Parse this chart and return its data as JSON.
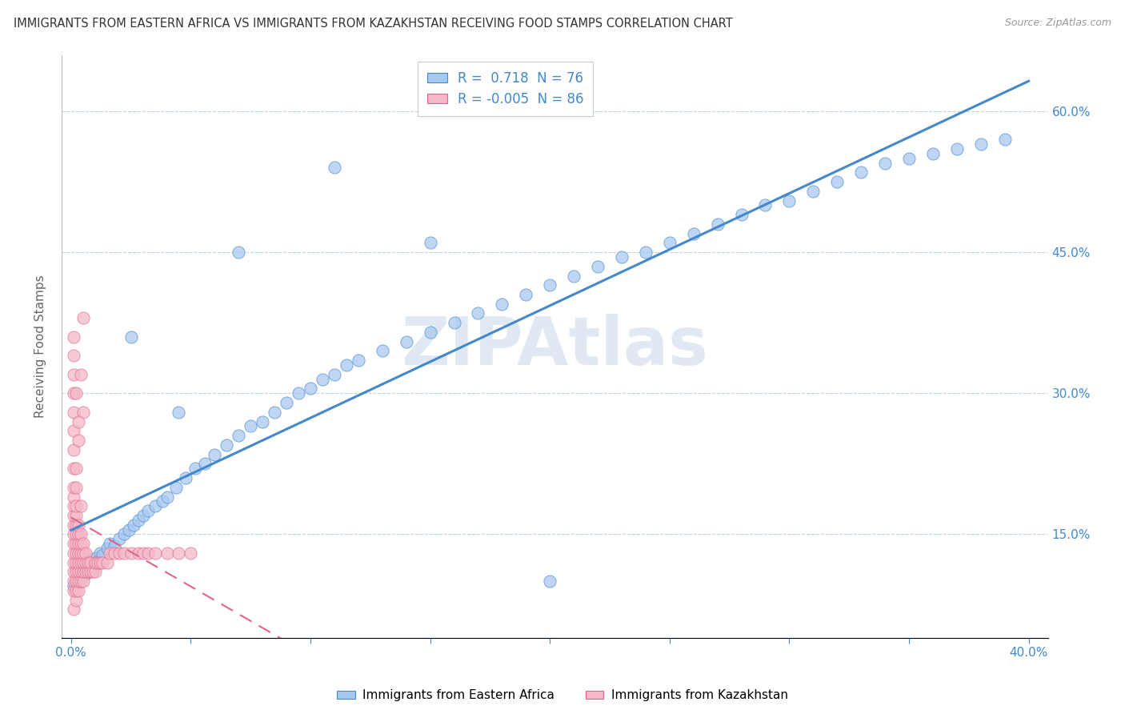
{
  "title": "IMMIGRANTS FROM EASTERN AFRICA VS IMMIGRANTS FROM KAZAKHSTAN RECEIVING FOOD STAMPS CORRELATION CHART",
  "source": "Source: ZipAtlas.com",
  "ylabel": "Receiving Food Stamps",
  "R_blue": 0.718,
  "N_blue": 76,
  "R_pink": -0.005,
  "N_pink": 86,
  "blue_scatter_color": "#a8c8f0",
  "blue_line_color": "#4488cc",
  "pink_scatter_color": "#f5b8c8",
  "pink_line_color": "#dd6688",
  "watermark": "ZIPAtlas",
  "legend_label_blue": "Immigrants from Eastern Africa",
  "legend_label_pink": "Immigrants from Kazakhstan",
  "blue_scatter_x": [
    0.001,
    0.002,
    0.003,
    0.004,
    0.005,
    0.006,
    0.007,
    0.008,
    0.009,
    0.01,
    0.011,
    0.012,
    0.013,
    0.015,
    0.016,
    0.018,
    0.02,
    0.022,
    0.024,
    0.026,
    0.028,
    0.03,
    0.032,
    0.035,
    0.038,
    0.04,
    0.044,
    0.048,
    0.052,
    0.056,
    0.06,
    0.065,
    0.07,
    0.075,
    0.08,
    0.085,
    0.09,
    0.095,
    0.1,
    0.105,
    0.11,
    0.115,
    0.12,
    0.13,
    0.14,
    0.15,
    0.16,
    0.17,
    0.18,
    0.19,
    0.2,
    0.21,
    0.22,
    0.23,
    0.24,
    0.25,
    0.26,
    0.27,
    0.28,
    0.29,
    0.3,
    0.31,
    0.32,
    0.33,
    0.34,
    0.35,
    0.36,
    0.37,
    0.38,
    0.39,
    0.025,
    0.045,
    0.07,
    0.11,
    0.15,
    0.2
  ],
  "blue_scatter_y": [
    0.095,
    0.1,
    0.105,
    0.115,
    0.11,
    0.108,
    0.118,
    0.122,
    0.115,
    0.125,
    0.12,
    0.13,
    0.128,
    0.135,
    0.14,
    0.138,
    0.145,
    0.15,
    0.155,
    0.16,
    0.165,
    0.17,
    0.175,
    0.18,
    0.185,
    0.19,
    0.2,
    0.21,
    0.22,
    0.225,
    0.235,
    0.245,
    0.255,
    0.265,
    0.27,
    0.28,
    0.29,
    0.3,
    0.305,
    0.315,
    0.32,
    0.33,
    0.335,
    0.345,
    0.355,
    0.365,
    0.375,
    0.385,
    0.395,
    0.405,
    0.415,
    0.425,
    0.435,
    0.445,
    0.45,
    0.46,
    0.47,
    0.48,
    0.49,
    0.5,
    0.505,
    0.515,
    0.525,
    0.535,
    0.545,
    0.55,
    0.555,
    0.56,
    0.565,
    0.57,
    0.36,
    0.28,
    0.45,
    0.54,
    0.46,
    0.1
  ],
  "pink_scatter_x": [
    0.001,
    0.001,
    0.001,
    0.001,
    0.001,
    0.001,
    0.001,
    0.001,
    0.001,
    0.001,
    0.001,
    0.001,
    0.001,
    0.001,
    0.001,
    0.001,
    0.001,
    0.001,
    0.001,
    0.002,
    0.002,
    0.002,
    0.002,
    0.002,
    0.002,
    0.002,
    0.002,
    0.002,
    0.002,
    0.002,
    0.002,
    0.003,
    0.003,
    0.003,
    0.003,
    0.003,
    0.003,
    0.003,
    0.003,
    0.004,
    0.004,
    0.004,
    0.004,
    0.004,
    0.004,
    0.005,
    0.005,
    0.005,
    0.005,
    0.005,
    0.006,
    0.006,
    0.006,
    0.007,
    0.007,
    0.008,
    0.008,
    0.009,
    0.01,
    0.01,
    0.011,
    0.012,
    0.013,
    0.015,
    0.016,
    0.018,
    0.02,
    0.022,
    0.025,
    0.028,
    0.03,
    0.032,
    0.035,
    0.04,
    0.045,
    0.05,
    0.001,
    0.002,
    0.003,
    0.004,
    0.005,
    0.001,
    0.002,
    0.003,
    0.004,
    0.005
  ],
  "pink_scatter_y": [
    0.07,
    0.09,
    0.1,
    0.11,
    0.12,
    0.13,
    0.14,
    0.15,
    0.16,
    0.17,
    0.18,
    0.19,
    0.2,
    0.22,
    0.24,
    0.26,
    0.28,
    0.3,
    0.32,
    0.08,
    0.09,
    0.1,
    0.11,
    0.12,
    0.13,
    0.14,
    0.15,
    0.16,
    0.17,
    0.18,
    0.2,
    0.09,
    0.1,
    0.11,
    0.12,
    0.13,
    0.14,
    0.15,
    0.16,
    0.1,
    0.11,
    0.12,
    0.13,
    0.14,
    0.15,
    0.1,
    0.11,
    0.12,
    0.13,
    0.14,
    0.11,
    0.12,
    0.13,
    0.11,
    0.12,
    0.11,
    0.12,
    0.11,
    0.11,
    0.12,
    0.12,
    0.12,
    0.12,
    0.12,
    0.13,
    0.13,
    0.13,
    0.13,
    0.13,
    0.13,
    0.13,
    0.13,
    0.13,
    0.13,
    0.13,
    0.13,
    0.34,
    0.22,
    0.25,
    0.18,
    0.28,
    0.36,
    0.3,
    0.27,
    0.32,
    0.38
  ]
}
